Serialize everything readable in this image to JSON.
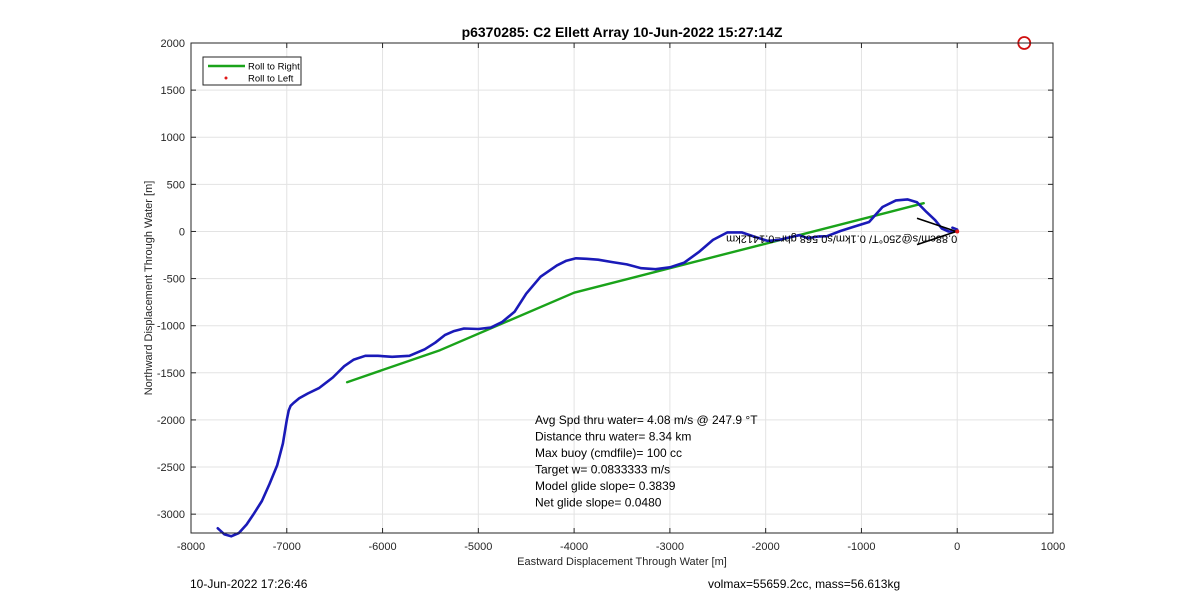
{
  "chart_data": {
    "type": "line",
    "title": "p6370285: C2 Ellett Array 10-Jun-2022 15:27:14Z",
    "xlabel": "Eastward Displacement Through Water [m]",
    "ylabel": "Northward Displacement Through Water [m]",
    "xlim": [
      -8000,
      1000
    ],
    "ylim": [
      -3200,
      2000
    ],
    "xticks": [
      -8000,
      -7000,
      -6000,
      -5000,
      -4000,
      -3000,
      -2000,
      -1000,
      0,
      1000
    ],
    "yticks": [
      -3000,
      -2500,
      -2000,
      -1500,
      -1000,
      -500,
      0,
      500,
      1000,
      1500,
      2000
    ],
    "grid": true,
    "legend": {
      "placement": "top-left",
      "entries": [
        {
          "label": "Roll to Right",
          "color": "#1aa31a",
          "style": "line"
        },
        {
          "label": "Roll to Left",
          "color": "#e01818",
          "style": "dot"
        }
      ]
    },
    "series": [
      {
        "color": "#1a1ab8",
        "x": [
          -7720,
          -7650,
          -7580,
          -7500,
          -7420,
          -7340,
          -7260,
          -7180,
          -7100,
          -7040,
          -7000,
          -6980,
          -6960,
          -6930,
          -6870,
          -6780,
          -6660,
          -6520,
          -6400,
          -6300,
          -6180,
          -6050,
          -5900,
          -5720,
          -5560,
          -5450,
          -5350,
          -5260,
          -5150,
          -5000,
          -4870,
          -4750,
          -4620,
          -4500,
          -4350,
          -4180,
          -4080,
          -3980,
          -3870,
          -3750,
          -3600,
          -3450,
          -3300,
          -3150,
          -3000,
          -2850,
          -2700,
          -2550,
          -2400,
          -2250,
          -2120,
          -1980,
          -1860,
          -1740,
          -1650,
          -1560,
          -1460,
          -1360,
          -1220,
          -1080,
          -920,
          -780,
          -640,
          -520,
          -420,
          -320,
          -230,
          -160,
          -90,
          -30,
          0,
          0,
          -50
        ],
        "y": [
          -3150,
          -3215,
          -3235,
          -3200,
          -3110,
          -2990,
          -2860,
          -2680,
          -2480,
          -2250,
          -2000,
          -1900,
          -1850,
          -1820,
          -1770,
          -1720,
          -1660,
          -1550,
          -1430,
          -1360,
          -1320,
          -1320,
          -1330,
          -1320,
          -1250,
          -1180,
          -1100,
          -1060,
          -1030,
          -1035,
          -1020,
          -960,
          -850,
          -660,
          -480,
          -360,
          -310,
          -285,
          -290,
          -300,
          -325,
          -350,
          -390,
          -400,
          -380,
          -330,
          -220,
          -90,
          -10,
          -10,
          -55,
          -100,
          -90,
          -60,
          -40,
          -70,
          -55,
          -50,
          5,
          50,
          100,
          260,
          330,
          340,
          310,
          205,
          120,
          30,
          0,
          0,
          5,
          20,
          40
        ]
      },
      {
        "name": "Roll to Right",
        "color": "#1aa31a",
        "x": [
          -6370,
          -5400,
          -4000,
          -350
        ],
        "y": [
          -1600,
          -1260,
          -650,
          300
        ]
      }
    ],
    "annotations": {
      "stats": [
        "Avg Spd thru water=  4.08 m/s @ 247.9 °T",
        "Distance thru water=  8.34 km",
        "Max buoy (cmdfile)= 100 cc",
        "Target w= 0.0833333 m/s",
        "Model glide slope= 0.3839",
        "Net glide slope= 0.0480"
      ],
      "mirrored_label": "0.88cm/s@250°T/ 0.1km/s0.568 ghr=0.1412km",
      "target_marker": {
        "x": 700,
        "y": 2000,
        "color": "#d01010"
      }
    }
  },
  "footer": {
    "timestamp": "10-Jun-2022 17:26:46",
    "volmax_mass": "volmax=55659.2cc, mass=56.613kg"
  }
}
